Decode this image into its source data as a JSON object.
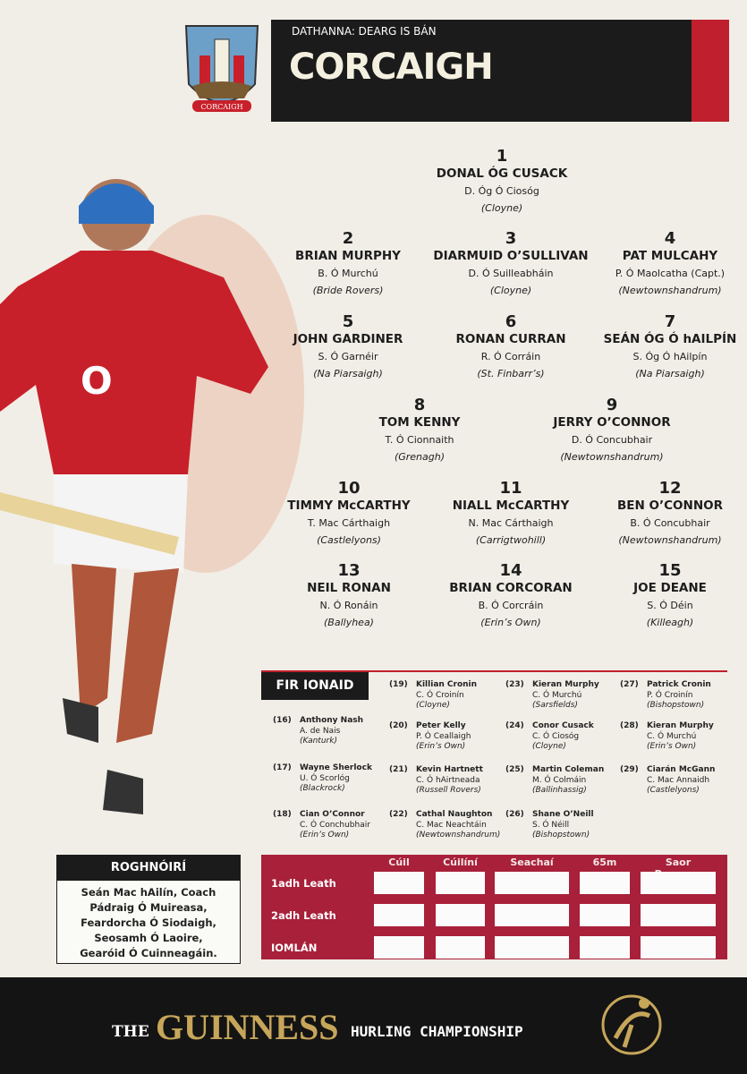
{
  "header": {
    "colours": "DATHANNA: DEARG IS BÁN",
    "title": "CORCAIGH",
    "crest": "CORCAIGH"
  },
  "players": [
    {
      "number": 1,
      "name": "DONAL ÓG CUSACK",
      "irish": "D. Óg Ó Ciosóg",
      "club": "(Cloyne)"
    },
    {
      "number": 2,
      "name": "BRIAN MURPHY",
      "irish": "B. Ó Murchú",
      "club": "(Bride Rovers)"
    },
    {
      "number": 3,
      "name": "DIARMUID O’SULLIVAN",
      "irish": "D. Ó Suilleabháin",
      "club": "(Cloyne)"
    },
    {
      "number": 4,
      "name": "PAT MULCAHY",
      "irish": "P. Ó Maolcatha (Capt.)",
      "club": "(Newtownshandrum)"
    },
    {
      "number": 5,
      "name": "JOHN GARDINER",
      "irish": "S. Ó Garnéir",
      "club": "(Na Piarsaigh)"
    },
    {
      "number": 6,
      "name": "RONAN CURRAN",
      "irish": "R. Ó Corráin",
      "club": "(St. Finbarr’s)"
    },
    {
      "number": 7,
      "name": "SEÁN ÓG Ó hAILPÍN",
      "irish": "S. Óg Ó hAilpín",
      "club": "(Na Piarsaigh)"
    },
    {
      "number": 8,
      "name": "TOM KENNY",
      "irish": "T. Ó Cionnaith",
      "club": "(Grenagh)"
    },
    {
      "number": 9,
      "name": "JERRY O’CONNOR",
      "irish": "D. Ó Concubhair",
      "club": "(Newtownshandrum)"
    },
    {
      "number": 10,
      "name": "TIMMY McCARTHY",
      "irish": "T. Mac Cárthaigh",
      "club": "(Castlelyons)"
    },
    {
      "number": 11,
      "name": "NIALL McCARTHY",
      "irish": "N. Mac Cárthaigh",
      "club": "(Carrigtwohill)"
    },
    {
      "number": 12,
      "name": "BEN O’CONNOR",
      "irish": "B. Ó Concubhair",
      "club": "(Newtownshandrum)"
    },
    {
      "number": 13,
      "name": "NEIL RONAN",
      "irish": "N. Ó Ronáin",
      "club": "(Ballyhea)"
    },
    {
      "number": 14,
      "name": "BRIAN CORCORAN",
      "irish": "B. Ó Corcráin",
      "club": "(Erin’s Own)"
    },
    {
      "number": 15,
      "name": "JOE DEANE",
      "irish": "S. Ó Déin",
      "club": "(Killeagh)"
    }
  ],
  "subs": {
    "title": "FIR IONAID",
    "players": [
      {
        "number": "(16)",
        "name": "Anthony Nash",
        "irish": "A. de Nais",
        "club": "(Kanturk)"
      },
      {
        "number": "(17)",
        "name": "Wayne Sherlock",
        "irish": "U. Ó Scorlóg",
        "club": "(Blackrock)"
      },
      {
        "number": "(18)",
        "name": "Cian O’Connor",
        "irish": "C. Ó Conchubhair",
        "club": "(Erin’s Own)"
      },
      {
        "number": "(19)",
        "name": "Killian Cronin",
        "irish": "C. Ó Croinín",
        "club": "(Cloyne)"
      },
      {
        "number": "(20)",
        "name": "Peter Kelly",
        "irish": "P. Ó Ceallaigh",
        "club": "(Erin’s Own)"
      },
      {
        "number": "(21)",
        "name": "Kevin Hartnett",
        "irish": "C. Ó hAirtneada",
        "club": "(Russell Rovers)"
      },
      {
        "number": "(22)",
        "name": "Cathal Naughton",
        "irish": "C. Mac Neachtáin",
        "club": "(Newtownshandrum)"
      },
      {
        "number": "(23)",
        "name": "Kieran Murphy",
        "irish": "C. Ó Murchú",
        "club": "(Sarsfields)"
      },
      {
        "number": "(24)",
        "name": "Conor Cusack",
        "irish": "C. Ó Ciosóg",
        "club": "(Cloyne)"
      },
      {
        "number": "(25)",
        "name": "Martin Coleman",
        "irish": "M. Ó Colmáin",
        "club": "(Ballinhassig)"
      },
      {
        "number": "(26)",
        "name": "Shane O’Neill",
        "irish": "S. Ó Néill",
        "club": "(Bishopstown)"
      },
      {
        "number": "(27)",
        "name": "Patrick Cronin",
        "irish": "P. Ó Croinín",
        "club": "(Bishopstown)"
      },
      {
        "number": "(28)",
        "name": "Kieran Murphy",
        "irish": "C. Ó Murchú",
        "club": "(Erin’s Own)"
      },
      {
        "number": "(29)",
        "name": "Ciarán McGann",
        "irish": "C. Mac Annaidh",
        "club": "(Castlelyons)"
      }
    ]
  },
  "selectors": {
    "title": "ROGHNÓIRÍ",
    "names": [
      "Seán Mac hAilín, Coach",
      "Pádraig Ó Muireasa,",
      "Feardorcha Ó Siodaigh,",
      "Seosamh Ó Laoire,",
      "Gearóid Ó Cuinneagáin."
    ]
  },
  "score_table": {
    "columns": [
      "Cúil",
      "Cúilíní",
      "Seachaí",
      "65m",
      "Saor Pocanna"
    ],
    "rows": [
      "1adh Leath",
      "2adh Leath",
      "IOMLÁN"
    ]
  },
  "footer": {
    "the": "THE",
    "brand": "GUINNESS",
    "event": "HURLING CHAMPIONSHIP"
  }
}
